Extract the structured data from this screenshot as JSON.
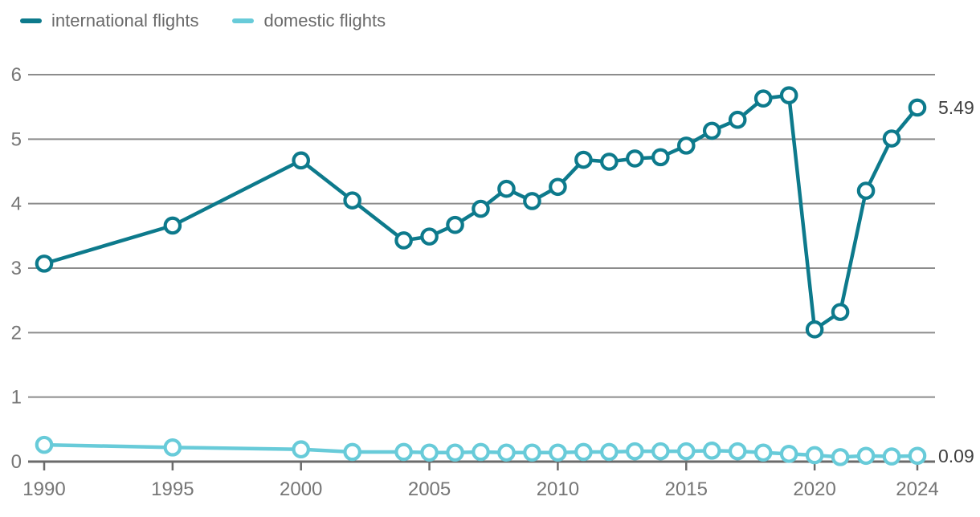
{
  "chart_data": {
    "type": "line",
    "x": [
      1990,
      1995,
      2000,
      2002,
      2004,
      2005,
      2006,
      2007,
      2008,
      2009,
      2010,
      2011,
      2012,
      2013,
      2014,
      2015,
      2016,
      2017,
      2018,
      2019,
      2020,
      2021,
      2022,
      2023,
      2024
    ],
    "series": [
      {
        "name": "international flights",
        "color": "#0d7a8c",
        "values": [
          3.07,
          3.66,
          4.67,
          4.05,
          3.43,
          3.49,
          3.67,
          3.92,
          4.23,
          4.04,
          4.26,
          4.68,
          4.65,
          4.7,
          4.72,
          4.9,
          5.13,
          5.3,
          5.63,
          5.68,
          2.05,
          2.32,
          4.2,
          5.01,
          5.49
        ],
        "end_label": "5.49"
      },
      {
        "name": "domestic flights",
        "color": "#68cbd9",
        "values": [
          0.26,
          0.22,
          0.19,
          0.15,
          0.15,
          0.14,
          0.14,
          0.15,
          0.14,
          0.14,
          0.14,
          0.15,
          0.15,
          0.16,
          0.16,
          0.16,
          0.17,
          0.16,
          0.14,
          0.12,
          0.1,
          0.07,
          0.09,
          0.08,
          0.09
        ],
        "end_label": "0.09"
      }
    ],
    "ylim": [
      0,
      6
    ],
    "yticks": [
      0,
      1,
      2,
      3,
      4,
      5,
      6
    ],
    "xticks": [
      1990,
      1995,
      2000,
      2005,
      2010,
      2015,
      2020,
      2024
    ],
    "grid": true,
    "legend_position": "top-left",
    "marker": "open-circle"
  },
  "legend": {
    "items": [
      {
        "label": "international flights"
      },
      {
        "label": "domestic flights"
      }
    ]
  },
  "colors": {
    "international": "#0d7a8c",
    "domestic": "#68cbd9",
    "gridline": "#8c8c8c",
    "axis": "#6b6b6b",
    "tick_text": "#767676",
    "legend_text": "#6a6a6a",
    "end_label_text": "#3f3f3f",
    "background": "#ffffff"
  }
}
